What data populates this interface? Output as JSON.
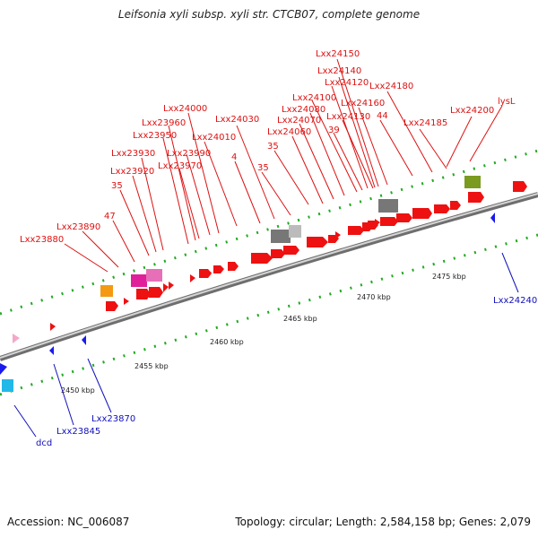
{
  "title": "Leifsonia xyli subsp. xyli str. CTCB07, complete genome",
  "footer": {
    "accession": "Accession: NC_006087",
    "summary": "Topology: circular; Length: 2,584,158 bp; Genes: 2,079"
  },
  "colors": {
    "forward_gene": "#ee1111",
    "reverse_gene": "#1a1aee",
    "forward_label": "#dd1111",
    "reverse_label": "#1010bb",
    "backbone": "#8a8a8a",
    "tick": "#22aa22",
    "rrna_gray": "#777777",
    "tRNA_pink": "#e0209a",
    "orange_feature": "#f39a12",
    "olive_feature": "#7a9a20",
    "cyan_feature": "#22b8e8",
    "light_pink_feature": "#f4a8c8"
  },
  "scale_labels": [
    "2450 kbp",
    "2455 kbp",
    "2460 kbp",
    "2465 kbp",
    "2470 kbp",
    "2475 kbp"
  ],
  "forward_labels": [
    "Lxx23880",
    "Lxx23890",
    "47",
    "35",
    "Lxx23920",
    "Lxx23930",
    "Lxx23950",
    "Lxx23960",
    "Lxx23970",
    "Lxx23990",
    "Lxx24000",
    "Lxx24010",
    "4",
    "Lxx24030",
    "35",
    "35",
    "Lxx24060",
    "Lxx24070",
    "Lxx24080",
    "Lxx24100",
    "39",
    "Lxx24120",
    "Lxx24130",
    "Lxx24140",
    "Lxx24150",
    "Lxx24160",
    "44",
    "Lxx24180",
    "Lxx24185",
    "Lxx24200",
    "lysL"
  ],
  "reverse_labels": [
    "dcd",
    "Lxx23845",
    "Lxx23870",
    "Lxx24240"
  ]
}
